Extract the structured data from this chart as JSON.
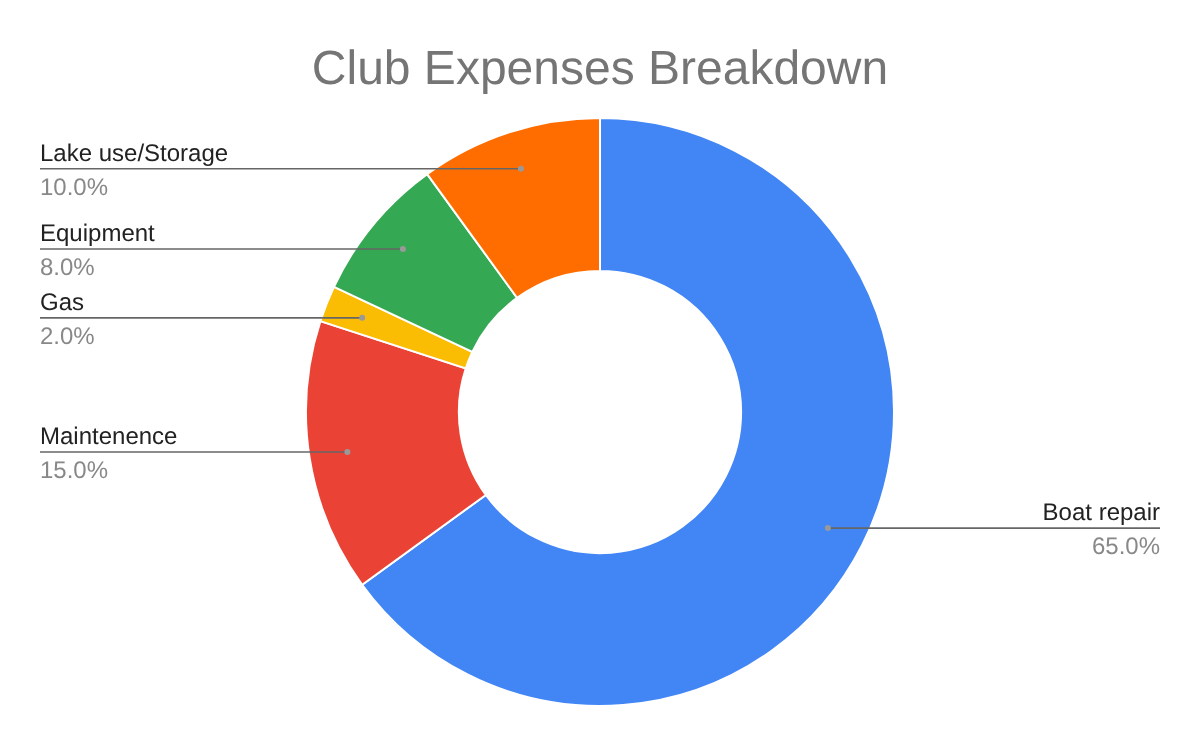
{
  "chart_data": {
    "type": "donut",
    "title": "Club Expenses Breakdown",
    "categories": [
      "Boat repair",
      "Maintenence",
      "Gas",
      "Equipment",
      "Lake use/Storage"
    ],
    "values": [
      65,
      15,
      2,
      8,
      10
    ],
    "colors": [
      "#4285f4",
      "#ea4335",
      "#fbbc04",
      "#34a853",
      "#ff6d01"
    ],
    "value_labels": [
      "65.0%",
      "15.0%",
      "2.0%",
      "8.0%",
      "10.0%"
    ]
  }
}
